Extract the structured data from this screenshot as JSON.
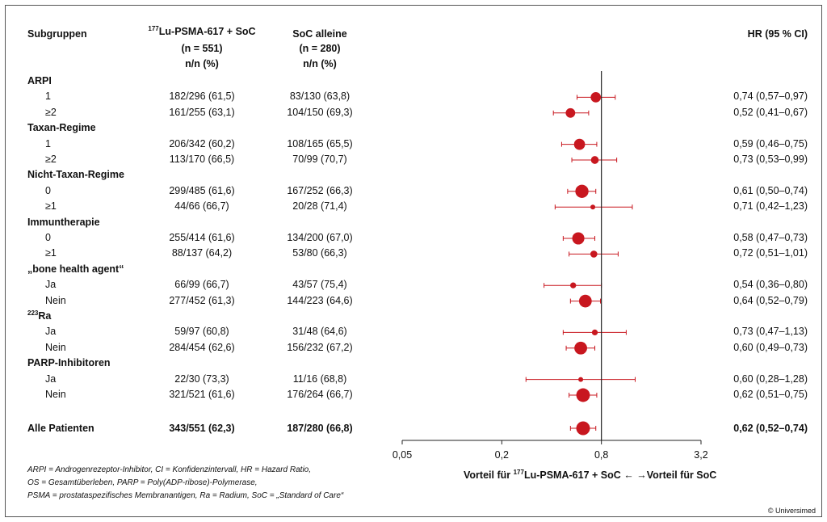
{
  "header": {
    "subgroups": "Subgruppen",
    "col1_sup": "177",
    "col1_line1": "Lu-PSMA-617 + SoC",
    "col1_line2": "(n = 551)",
    "col1_line3": "n/n (%)",
    "col2_line1": "SoC alleine",
    "col2_line2": "(n = 280)",
    "col2_line3": "n/n (%)",
    "hr": "HR (95 % CI)"
  },
  "chart_data": {
    "type": "forest",
    "x_scale": "log",
    "xlim": [
      0.05,
      3.2
    ],
    "x_ticks": [
      "0,05",
      "0,2",
      "0,8",
      "3,2"
    ],
    "x_tick_values": [
      0.05,
      0.2,
      0.8,
      3.2
    ],
    "reference_line": 0.8,
    "groups": [
      {
        "label": "ARPI",
        "rows": [
          {
            "label": "1",
            "treat": "182/296 (61,5)",
            "soc": "83/130 (63,8)",
            "hr": 0.74,
            "lo": 0.57,
            "hi": 0.97,
            "hr_text": "0,74 (0,57–0,97)"
          },
          {
            "label": "≥2",
            "treat": "161/255 (63,1)",
            "soc": "104/150 (69,3)",
            "hr": 0.52,
            "lo": 0.41,
            "hi": 0.67,
            "hr_text": "0,52 (0,41–0,67)"
          }
        ]
      },
      {
        "label": "Taxan-Regime",
        "rows": [
          {
            "label": "1",
            "treat": "206/342 (60,2)",
            "soc": "108/165 (65,5)",
            "hr": 0.59,
            "lo": 0.46,
            "hi": 0.75,
            "hr_text": "0,59 (0,46–0,75)"
          },
          {
            "label": "≥2",
            "treat": "113/170 (66,5)",
            "soc": "70/99 (70,7)",
            "hr": 0.73,
            "lo": 0.53,
            "hi": 0.99,
            "hr_text": "0,73 (0,53–0,99)"
          }
        ]
      },
      {
        "label": "Nicht-Taxan-Regime",
        "rows": [
          {
            "label": "0",
            "treat": "299/485 (61,6)",
            "soc": "167/252 (66,3)",
            "hr": 0.61,
            "lo": 0.5,
            "hi": 0.74,
            "hr_text": "0,61 (0,50–0,74)"
          },
          {
            "label": "≥1",
            "treat": "44/66 (66,7)",
            "soc": "20/28 (71,4)",
            "hr": 0.71,
            "lo": 0.42,
            "hi": 1.23,
            "hr_text": "0,71 (0,42–1,23)"
          }
        ]
      },
      {
        "label": "Immuntherapie",
        "rows": [
          {
            "label": "0",
            "treat": "255/414 (61,6)",
            "soc": "134/200 (67,0)",
            "hr": 0.58,
            "lo": 0.47,
            "hi": 0.73,
            "hr_text": "0,58 (0,47–0,73)"
          },
          {
            "label": "≥1",
            "treat": "88/137 (64,2)",
            "soc": "53/80 (66,3)",
            "hr": 0.72,
            "lo": 0.51,
            "hi": 1.01,
            "hr_text": "0,72 (0,51–1,01)"
          }
        ]
      },
      {
        "label": "„bone health agent“",
        "rows": [
          {
            "label": "Ja",
            "treat": "66/99 (66,7)",
            "soc": "43/57 (75,4)",
            "hr": 0.54,
            "lo": 0.36,
            "hi": 0.8,
            "hr_text": "0,54 (0,36–0,80)"
          },
          {
            "label": "Nein",
            "treat": "277/452 (61,3)",
            "soc": "144/223 (64,6)",
            "hr": 0.64,
            "lo": 0.52,
            "hi": 0.79,
            "hr_text": "0,64 (0,52–0,79)"
          }
        ]
      },
      {
        "label": "Ra",
        "label_sup": "223",
        "rows": [
          {
            "label": "Ja",
            "treat": "59/97 (60,8)",
            "soc": "31/48 (64,6)",
            "hr": 0.73,
            "lo": 0.47,
            "hi": 1.13,
            "hr_text": "0,73 (0,47–1,13)"
          },
          {
            "label": "Nein",
            "treat": "284/454 (62,6)",
            "soc": "156/232 (67,2)",
            "hr": 0.6,
            "lo": 0.49,
            "hi": 0.73,
            "hr_text": "0,60 (0,49–0,73)"
          }
        ]
      },
      {
        "label": "PARP-Inhibitoren",
        "rows": [
          {
            "label": "Ja",
            "treat": "22/30 (73,3)",
            "soc": "11/16 (68,8)",
            "hr": 0.6,
            "lo": 0.28,
            "hi": 1.28,
            "hr_text": "0,60 (0,28–1,28)"
          },
          {
            "label": "Nein",
            "treat": "321/521 (61,6)",
            "soc": "176/264 (66,7)",
            "hr": 0.62,
            "lo": 0.51,
            "hi": 0.75,
            "hr_text": "0,62 (0,51–0,75)"
          }
        ]
      }
    ],
    "overall": {
      "label": "Alle Patienten",
      "treat": "343/551 (62,3)",
      "soc": "187/280 (66,8)",
      "hr": 0.62,
      "lo": 0.52,
      "hi": 0.74,
      "hr_text": "0,62 (0,52–0,74)"
    },
    "x_axis_label": {
      "left": "Vorteil für ",
      "sup": "177",
      "mid": "Lu-PSMA-617 + SoC ←  →Vorteil für SoC"
    },
    "marker_color": "#c8171f"
  },
  "footnotes": [
    "ARPI = Androgenrezeptor-Inhibitor, CI = Konfidenzintervall, HR = Hazard Ratio,",
    "OS = Gesamtüberleben, PARP = Poly(ADP-ribose)-Polymerase,",
    "PSMA = prostataspezifisches Membranantigen, Ra = Radium, SoC = „Standard of Care“"
  ],
  "copyright": "© Universimed"
}
